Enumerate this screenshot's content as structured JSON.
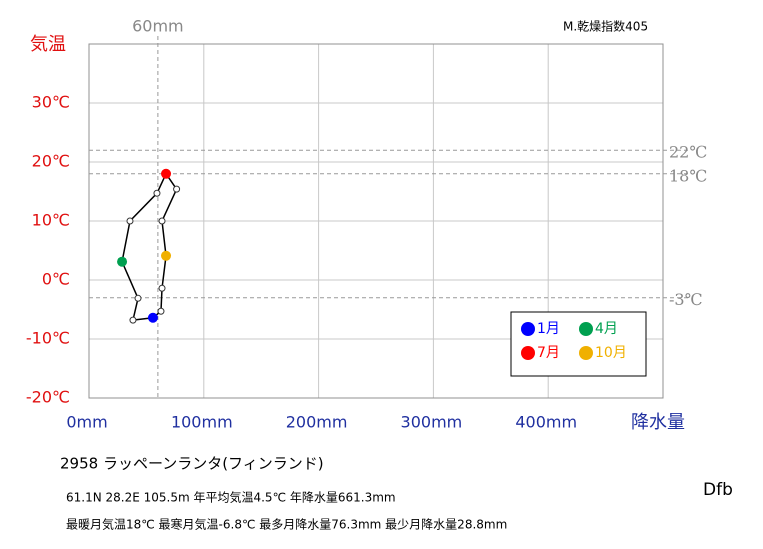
{
  "chart_data": {
    "type": "climograph",
    "index_label": "M.乾燥指数405",
    "y_label": "気温",
    "x_label": "降水量",
    "xlim": [
      0,
      500
    ],
    "ylim": [
      -20,
      40
    ],
    "xticks": [
      {
        "value": 0,
        "label": "0mm"
      },
      {
        "value": 100,
        "label": "100mm"
      },
      {
        "value": 200,
        "label": "200mm"
      },
      {
        "value": 300,
        "label": "300mm"
      },
      {
        "value": 400,
        "label": "400mm"
      },
      500
    ],
    "yticks": [
      {
        "value": -20,
        "label": "-20℃"
      },
      {
        "value": -10,
        "label": "-10℃"
      },
      {
        "value": 0,
        "label": "0℃"
      },
      {
        "value": 10,
        "label": "10℃"
      },
      {
        "value": 20,
        "label": "20℃"
      },
      {
        "value": 30,
        "label": "30℃"
      },
      40
    ],
    "grid": true,
    "reference_lines": [
      {
        "axis": "x",
        "value": 60,
        "label": "60mm"
      },
      {
        "axis": "y",
        "value": 22,
        "label": "22℃"
      },
      {
        "axis": "y",
        "value": 18,
        "label": "18℃"
      },
      {
        "axis": "y",
        "value": -3,
        "label": "-3℃"
      }
    ],
    "series": [
      {
        "color": "#000000",
        "x": [
          55.7,
          38.3,
          42.7,
          28.8,
          35.7,
          59.2,
          67.1,
          76.3,
          63.6,
          67.1,
          63.6,
          62.7
        ],
        "values": [
          -6.4,
          -6.8,
          -3.1,
          3.1,
          10.0,
          14.7,
          18.0,
          15.4,
          10.0,
          4.1,
          -1.4,
          -5.3
        ],
        "point_colors": [
          "#0000ff",
          "#ffffff",
          "#ffffff",
          "#00a050",
          "#ffffff",
          "#ffffff",
          "#ff0000",
          "#ffffff",
          "#ffffff",
          "#f0b000",
          "#ffffff",
          "#ffffff"
        ]
      }
    ],
    "legend": [
      {
        "name": "1月",
        "color": "#0000ff"
      },
      {
        "name": "4月",
        "color": "#00a050"
      },
      {
        "name": "7月",
        "color": "#ff0000"
      },
      {
        "name": "10月",
        "color": "#f0b000"
      }
    ],
    "station": "2958  ラッペーンランタ(フィンランド)",
    "info": [
      "61.1N  28.2E  105.5m   年平均気温4.5℃ 年降水量661.3mm",
      "最暖月気温18℃ 最寒月気温-6.8℃ 最多月降水量76.3mm 最少月降水量28.8mm"
    ],
    "climate": "Dfb"
  }
}
